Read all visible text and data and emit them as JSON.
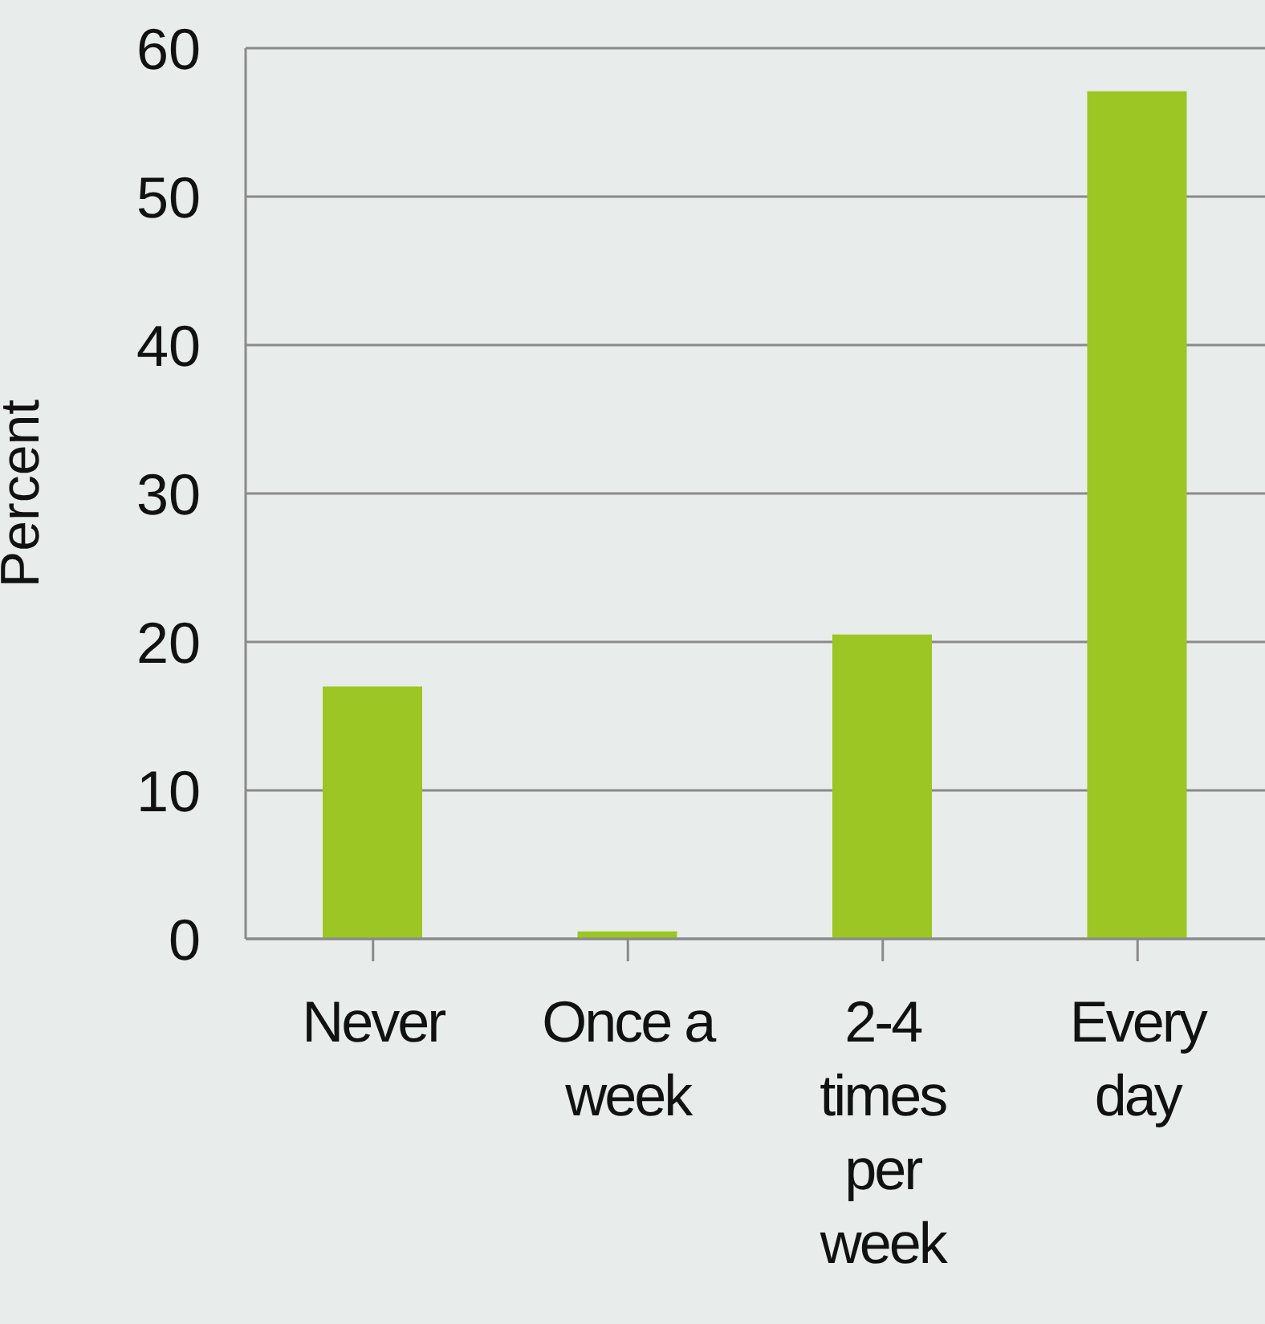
{
  "chart_data": {
    "type": "bar",
    "ylabel": "Percent",
    "categories": [
      "Never",
      "Once a week",
      "2-4 times per week",
      "Every day"
    ],
    "values": [
      17,
      0.5,
      20.5,
      57.1
    ],
    "color": "#9bc623",
    "ylim": [
      0,
      60
    ],
    "yticks": [
      0,
      10,
      20,
      30,
      40,
      50,
      60
    ],
    "grid": "y"
  }
}
